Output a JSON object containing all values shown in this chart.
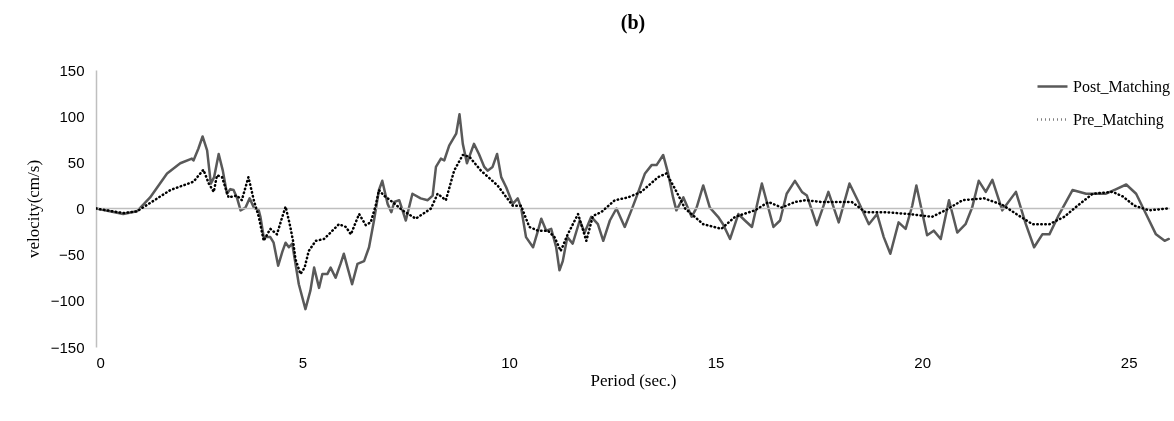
{
  "chart_data": {
    "type": "line",
    "title": "(b)",
    "xlabel": "Period (sec.)",
    "ylabel": "velocity(cm/s)",
    "xlim": [
      0,
      26
    ],
    "xticks": [
      0,
      5,
      10,
      15,
      20,
      25
    ],
    "ylim": [
      -150,
      150
    ],
    "yticks": [
      -150,
      -100,
      -50,
      0,
      50,
      100,
      150
    ],
    "grid": false,
    "legend": "top right",
    "ref_lines": [
      {
        "axis": "y",
        "value": 0,
        "color": "#bfbfbf"
      }
    ],
    "series": [
      {
        "name": "Post_Matching",
        "color": "#595959",
        "line_style": "solid",
        "x": [
          0,
          0.66,
          0.99,
          1.31,
          1.72,
          2.04,
          2.32,
          2.36,
          2.48,
          2.58,
          2.69,
          2.78,
          2.86,
          2.97,
          3.07,
          3.17,
          3.25,
          3.33,
          3.41,
          3.5,
          3.62,
          3.72,
          3.82,
          3.94,
          3.98,
          4.06,
          4.22,
          4.3,
          4.41,
          4.51,
          4.59,
          4.67,
          4.75,
          4.91,
          5.07,
          5.19,
          5.28,
          5.4,
          5.48,
          5.6,
          5.68,
          5.8,
          5.92,
          6.0,
          6.09,
          6.2,
          6.33,
          6.49,
          6.61,
          6.73,
          6.85,
          6.93,
          7.06,
          7.15,
          7.22,
          7.34,
          7.5,
          7.66,
          7.86,
          8.03,
          8.15,
          8.23,
          8.35,
          8.43,
          8.55,
          8.72,
          8.8,
          8.88,
          8.98,
          9.15,
          9.27,
          9.4,
          9.48,
          9.6,
          9.71,
          9.81,
          9.93,
          10.09,
          10.21,
          10.29,
          10.41,
          10.58,
          10.7,
          10.78,
          10.9,
          11.02,
          11.14,
          11.22,
          11.3,
          11.41,
          11.54,
          11.71,
          11.83,
          11.99,
          12.15,
          12.28,
          12.44,
          12.6,
          12.8,
          12.96,
          13.08,
          13.29,
          13.45,
          13.57,
          13.73,
          13.85,
          13.97,
          14.05,
          14.22,
          14.42,
          14.54,
          14.7,
          14.86,
          15.06,
          15.18,
          15.35,
          15.55,
          15.71,
          15.88,
          16.12,
          16.4,
          16.56,
          16.72,
          16.92,
          17.09,
          17.21,
          17.45,
          17.73,
          17.98,
          18.24,
          18.46,
          18.71,
          18.91,
          19.07,
          19.23,
          19.43,
          19.6,
          19.76,
          19.86,
          20.0,
          20.12,
          20.28,
          20.45,
          20.65,
          20.85,
          21.05,
          21.21,
          21.37,
          21.54,
          21.7,
          21.94,
          22.27,
          22.51,
          22.71,
          22.91,
          23.08,
          23.32,
          23.64,
          23.97,
          24.45,
          24.7,
          24.94,
          25.18,
          25.42,
          25.66,
          25.87,
          25.97
        ],
        "values": [
          0,
          -6,
          -3,
          12,
          38,
          49,
          54,
          52,
          65,
          78,
          63,
          27,
          34,
          59,
          41,
          16,
          21,
          20,
          12,
          -2,
          1,
          11,
          1,
          -2,
          -9,
          -31,
          -31,
          -37,
          -62,
          -47,
          -37,
          -42,
          -38,
          -82,
          -109,
          -89,
          -64,
          -86,
          -71,
          -71,
          -64,
          -75,
          -60,
          -49,
          -64,
          -82,
          -60,
          -57,
          -42,
          -13,
          20,
          30,
          5,
          -4,
          7,
          9,
          -13,
          16,
          11,
          9,
          14,
          45,
          54,
          52,
          68,
          81,
          102,
          70,
          49,
          70,
          59,
          45,
          41,
          45,
          59,
          34,
          23,
          5,
          11,
          1,
          -31,
          -42,
          -24,
          -11,
          -24,
          -22,
          -42,
          -67,
          -57,
          -31,
          -38,
          -13,
          -26,
          -9,
          -17,
          -35,
          -13,
          0,
          -20,
          -2,
          12,
          38,
          47,
          47,
          58,
          38,
          12,
          -2,
          12,
          -9,
          1,
          25,
          1,
          -9,
          -17,
          -33,
          -6,
          -13,
          -20,
          27,
          -20,
          -13,
          16,
          30,
          18,
          14,
          -18,
          18,
          -15,
          27,
          7,
          -17,
          -6,
          -31,
          -49,
          -15,
          -22,
          3,
          25,
          -4,
          -29,
          -24,
          -33,
          9,
          -26,
          -17,
          1,
          30,
          18,
          31,
          -2,
          18,
          -17,
          -42,
          -28,
          -28,
          -6,
          20,
          16,
          16,
          21,
          26,
          16,
          -6,
          -28,
          -35,
          -33
        ]
      },
      {
        "name": "Pre_Matching",
        "color": "#000000",
        "line_style": "dotted",
        "x": [
          0,
          0.66,
          0.99,
          1.31,
          1.8,
          2.36,
          2.6,
          2.73,
          2.85,
          2.93,
          3.05,
          3.21,
          3.41,
          3.53,
          3.69,
          3.82,
          3.94,
          4.06,
          4.22,
          4.38,
          4.51,
          4.59,
          4.69,
          4.77,
          4.83,
          4.95,
          5.05,
          5.15,
          5.32,
          5.52,
          5.68,
          5.88,
          6.05,
          6.17,
          6.37,
          6.53,
          6.65,
          6.77,
          6.85,
          6.97,
          7.18,
          7.42,
          7.74,
          8.11,
          8.27,
          8.47,
          8.67,
          8.88,
          9.04,
          9.32,
          9.72,
          10.09,
          10.29,
          10.49,
          10.7,
          10.94,
          11.1,
          11.25,
          11.42,
          11.67,
          11.87,
          12.03,
          12.23,
          12.56,
          12.88,
          13.2,
          13.61,
          13.81,
          14.02,
          14.26,
          14.7,
          15.14,
          15.47,
          15.95,
          16.28,
          16.6,
          16.92,
          17.18,
          17.57,
          18.3,
          18.63,
          19.11,
          19.67,
          20.24,
          20.56,
          20.98,
          21.5,
          21.94,
          22.35,
          22.67,
          23.08,
          23.44,
          23.76,
          24.13,
          24.61,
          24.86,
          25.14,
          25.5,
          25.94
        ],
        "values": [
          0,
          -5,
          -3,
          6,
          20,
          29,
          42,
          27,
          18,
          36,
          34,
          12,
          14,
          9,
          34,
          9,
          -9,
          -35,
          -22,
          -28,
          -9,
          2,
          -17,
          -35,
          -55,
          -71,
          -64,
          -46,
          -35,
          -33,
          -26,
          -17,
          -20,
          -28,
          -6,
          -18,
          -15,
          3,
          20,
          14,
          7,
          -2,
          -11,
          0,
          16,
          9,
          41,
          58,
          56,
          41,
          25,
          3,
          3,
          -20,
          -24,
          -24,
          -31,
          -46,
          -28,
          -6,
          -35,
          -8,
          -4,
          9,
          12,
          18,
          34,
          38,
          21,
          0,
          -17,
          -22,
          -9,
          -2,
          7,
          1,
          7,
          9,
          7,
          7,
          -4,
          -4,
          -6,
          -9,
          -2,
          9,
          11,
          4,
          -8,
          -17,
          -17,
          -9,
          3,
          16,
          18,
          13,
          3,
          -2,
          0
        ]
      }
    ]
  }
}
